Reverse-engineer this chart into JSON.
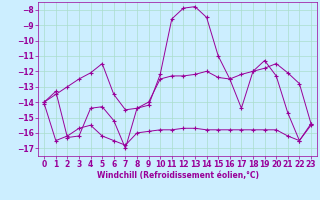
{
  "xlabel": "Windchill (Refroidissement éolien,°C)",
  "bg_color": "#cceeff",
  "line_color": "#990099",
  "x_values": [
    0,
    1,
    2,
    3,
    4,
    5,
    6,
    7,
    8,
    9,
    10,
    11,
    12,
    13,
    14,
    15,
    16,
    17,
    18,
    19,
    20,
    21,
    22,
    23
  ],
  "series1": [
    -14.0,
    -13.3,
    -16.3,
    -16.2,
    -14.4,
    -14.3,
    -15.2,
    -17.0,
    -14.4,
    -14.2,
    -12.2,
    -8.6,
    -7.9,
    -7.8,
    -8.5,
    -11.0,
    -12.5,
    -14.4,
    -12.0,
    -11.3,
    -12.3,
    -14.7,
    -16.5,
    -15.5
  ],
  "series2": [
    -14.1,
    -16.5,
    -16.2,
    -15.7,
    -15.5,
    -16.2,
    -16.5,
    -16.8,
    -16.0,
    -15.9,
    -15.8,
    -15.8,
    -15.7,
    -15.7,
    -15.8,
    -15.8,
    -15.8,
    -15.8,
    -15.8,
    -15.8,
    -15.8,
    -16.2,
    -16.5,
    -15.4
  ],
  "series3": [
    -14.0,
    -13.5,
    -13.0,
    -12.5,
    -12.1,
    -11.5,
    -13.5,
    -14.5,
    -14.4,
    -14.0,
    -12.5,
    -12.3,
    -12.3,
    -12.2,
    -12.0,
    -12.4,
    -12.5,
    -12.2,
    -12.0,
    -11.8,
    -11.5,
    -12.1,
    -12.8,
    -15.4
  ],
  "ylim": [
    -17.5,
    -7.5
  ],
  "xlim": [
    -0.5,
    23.5
  ],
  "yticks": [
    -17,
    -16,
    -15,
    -14,
    -13,
    -12,
    -11,
    -10,
    -9,
    -8
  ],
  "xticks": [
    0,
    1,
    2,
    3,
    4,
    5,
    6,
    7,
    8,
    9,
    10,
    11,
    12,
    13,
    14,
    15,
    16,
    17,
    18,
    19,
    20,
    21,
    22,
    23
  ],
  "grid_color": "#aaddcc",
  "spine_color": "#990099",
  "tick_fontsize": 5.5,
  "xlabel_fontsize": 5.5
}
